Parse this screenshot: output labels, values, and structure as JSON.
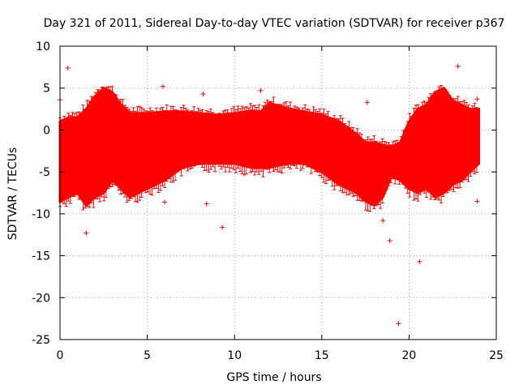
{
  "chart_data": {
    "type": "scatter",
    "title": "Day 321 of 2011, Sidereal Day-to-day VTEC variation (SDTVAR) for receiver p367",
    "xlabel": "GPS time / hours",
    "ylabel": "SDTVAR / TECUs",
    "xlim": [
      0,
      25
    ],
    "ylim": [
      -25,
      10
    ],
    "xticks": [
      0,
      5,
      10,
      15,
      20,
      25
    ],
    "yticks": [
      -25,
      -20,
      -15,
      -10,
      -5,
      0,
      5,
      10
    ],
    "grid": true,
    "marker": "plus",
    "series": [
      {
        "name": "SDTVAR",
        "color": "#ff0000",
        "envelope": {
          "x": [
            0.0,
            0.5,
            1.0,
            1.5,
            2.0,
            2.5,
            3.0,
            3.5,
            4.0,
            5.0,
            6.0,
            7.0,
            8.0,
            9.0,
            10.0,
            11.0,
            11.5,
            12.0,
            13.0,
            14.0,
            15.0,
            16.0,
            17.0,
            17.5,
            18.0,
            18.5,
            19.0,
            19.5,
            20.0,
            20.5,
            21.0,
            21.5,
            22.0,
            22.5,
            23.0,
            23.5,
            24.0
          ],
          "upper": [
            1.0,
            1.5,
            1.5,
            2.5,
            4.0,
            5.0,
            4.5,
            3.0,
            2.0,
            2.0,
            2.2,
            2.2,
            2.0,
            1.8,
            2.0,
            2.3,
            2.2,
            3.2,
            2.6,
            2.2,
            1.8,
            1.0,
            -0.5,
            -1.5,
            -1.5,
            -1.8,
            -2.0,
            -1.5,
            1.0,
            2.5,
            3.0,
            4.5,
            5.0,
            3.5,
            3.0,
            2.5,
            2.5
          ],
          "lower": [
            -8.5,
            -8.0,
            -7.5,
            -9.0,
            -8.0,
            -7.5,
            -6.0,
            -7.0,
            -8.0,
            -7.0,
            -6.0,
            -4.5,
            -4.0,
            -4.0,
            -4.0,
            -4.5,
            -4.5,
            -4.5,
            -4.0,
            -4.0,
            -5.0,
            -6.5,
            -7.5,
            -8.5,
            -9.0,
            -8.0,
            -5.5,
            -6.0,
            -7.0,
            -7.5,
            -7.0,
            -8.0,
            -7.5,
            -6.5,
            -6.0,
            -5.0,
            -4.0
          ]
        },
        "outliers": [
          {
            "x": 0.0,
            "y": 3.6
          },
          {
            "x": 0.45,
            "y": 7.4
          },
          {
            "x": 1.5,
            "y": -12.3
          },
          {
            "x": 5.9,
            "y": 5.2
          },
          {
            "x": 6.0,
            "y": -8.6
          },
          {
            "x": 8.2,
            "y": 4.3
          },
          {
            "x": 8.4,
            "y": -8.8
          },
          {
            "x": 9.3,
            "y": -11.6
          },
          {
            "x": 11.5,
            "y": 4.7
          },
          {
            "x": 17.6,
            "y": 3.3
          },
          {
            "x": 18.5,
            "y": -10.8
          },
          {
            "x": 18.9,
            "y": -13.2
          },
          {
            "x": 19.4,
            "y": -23.1
          },
          {
            "x": 20.6,
            "y": -15.7
          },
          {
            "x": 22.8,
            "y": 7.6
          },
          {
            "x": 23.9,
            "y": -8.5
          },
          {
            "x": 23.9,
            "y": 3.7
          }
        ]
      }
    ]
  }
}
